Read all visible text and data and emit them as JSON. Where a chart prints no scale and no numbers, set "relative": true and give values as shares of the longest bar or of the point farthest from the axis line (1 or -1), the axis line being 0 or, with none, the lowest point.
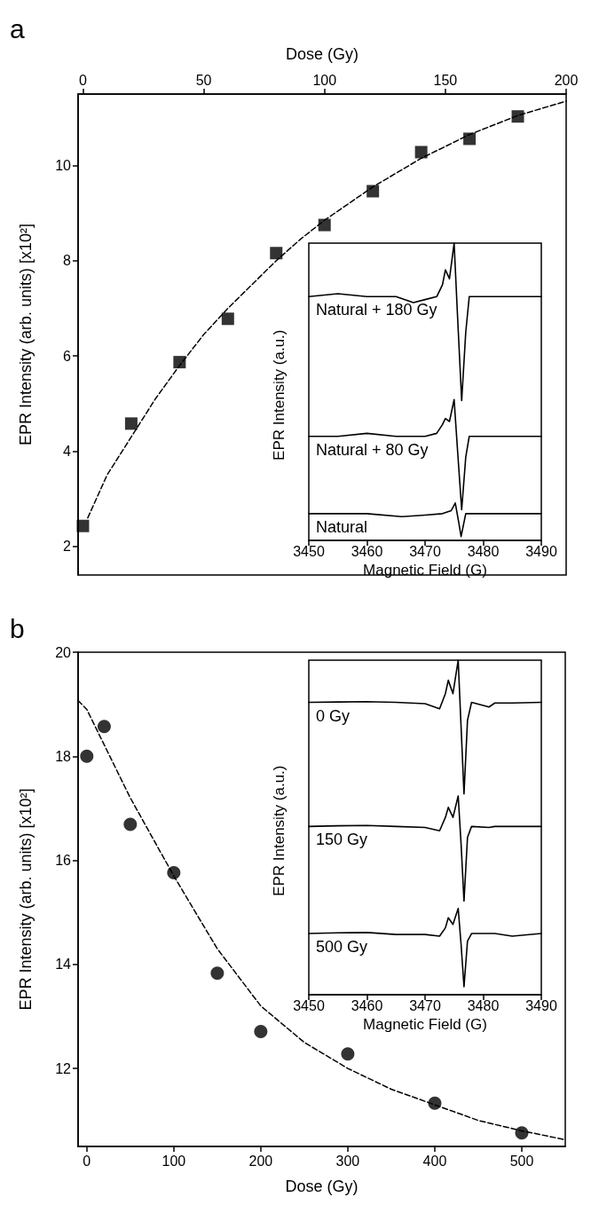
{
  "chart_data": [
    {
      "type": "scatter",
      "title": "a",
      "xlabel": "Dose (Gy)",
      "ylabel": "EPR Intensity (arb. units) [x10²]",
      "xlim": [
        -2,
        200
      ],
      "xticks": [
        0,
        50,
        100,
        150,
        200
      ],
      "ylim": [
        1.4,
        11.5
      ],
      "yticks": [
        2,
        4,
        6,
        8,
        10
      ],
      "series": [
        {
          "color": "#000000",
          "marker": "square",
          "x": [
            0,
            20,
            40,
            60,
            80,
            100,
            120,
            140,
            160,
            180
          ],
          "values": [
            2.43,
            4.58,
            5.87,
            6.78,
            8.16,
            8.75,
            9.46,
            10.28,
            10.56,
            11.03
          ]
        },
        {
          "type": "line",
          "color": "#000000",
          "marker": "none",
          "line_style": "dashed",
          "x": [
            2,
            10,
            20,
            30,
            40,
            50,
            60,
            70,
            80,
            90,
            100,
            120,
            140,
            160,
            180,
            200
          ],
          "values": [
            2.6,
            3.5,
            4.3,
            5.1,
            5.8,
            6.45,
            7.0,
            7.5,
            8.0,
            8.45,
            8.85,
            9.55,
            10.15,
            10.65,
            11.05,
            11.35
          ]
        }
      ]
    },
    {
      "type": "line",
      "relative": true,
      "xlabel": "Magnetic Field (G)",
      "ylabel": "EPR Intensity (a.u.)",
      "xlim": [
        3450,
        3490
      ],
      "xticks": [
        3450,
        3460,
        3470,
        3480,
        3490
      ],
      "series": [
        {
          "name": "Natural + 180 Gy",
          "color": "#000000",
          "x": [
            3450,
            3455,
            3460,
            3465,
            3468,
            3470,
            3472,
            3473,
            3473.5,
            3474.2,
            3475,
            3475.6,
            3476.3,
            3477,
            3477.6,
            3480,
            3485,
            3490
          ],
          "values": [
            0.82,
            0.83,
            0.82,
            0.82,
            0.8,
            0.81,
            0.82,
            0.86,
            0.91,
            0.88,
            1.0,
            0.75,
            0.47,
            0.7,
            0.82,
            0.82,
            0.82,
            0.82
          ]
        },
        {
          "name": "Natural + 80 Gy",
          "color": "#000000",
          "x": [
            3450,
            3455,
            3460,
            3465,
            3468,
            3470,
            3472,
            3473,
            3473.5,
            3474.2,
            3475,
            3475.6,
            3476.3,
            3477,
            3477.6,
            3480,
            3485,
            3490
          ],
          "values": [
            0.35,
            0.35,
            0.36,
            0.35,
            0.35,
            0.35,
            0.36,
            0.39,
            0.41,
            0.4,
            0.474,
            0.3,
            0.103,
            0.28,
            0.35,
            0.35,
            0.35,
            0.35
          ]
        },
        {
          "name": "Natural",
          "color": "#000000",
          "x": [
            3450,
            3455,
            3460,
            3466,
            3470,
            3473,
            3474.5,
            3475.2,
            3475.8,
            3476.2,
            3477,
            3480,
            3485,
            3490
          ],
          "values": [
            0.09,
            0.09,
            0.09,
            0.08,
            0.085,
            0.09,
            0.1,
            0.126,
            0.06,
            0.013,
            0.09,
            0.09,
            0.09,
            0.09
          ]
        }
      ]
    },
    {
      "type": "scatter",
      "title": "b",
      "xlabel": "Dose (Gy)",
      "ylabel": "EPR Intensity (arb. units) [x10²]",
      "xlim": [
        -10,
        550
      ],
      "xticks": [
        0,
        100,
        200,
        300,
        400,
        500
      ],
      "ylim": [
        10.5,
        20
      ],
      "yticks": [
        12,
        14,
        16,
        18,
        20
      ],
      "series": [
        {
          "color": "#000000",
          "marker": "circle",
          "x": [
            0,
            20,
            50,
            100,
            150,
            200,
            300,
            400,
            500
          ],
          "values": [
            18.0,
            18.57,
            16.69,
            15.76,
            13.83,
            12.71,
            12.28,
            11.33,
            10.76
          ]
        },
        {
          "type": "line",
          "color": "#000000",
          "marker": "none",
          "line_style": "dashed",
          "x": [
            -10,
            0,
            50,
            100,
            150,
            200,
            250,
            300,
            350,
            400,
            450,
            500,
            550
          ],
          "values": [
            19.07,
            18.9,
            17.2,
            15.7,
            14.3,
            13.2,
            12.5,
            12.0,
            11.6,
            11.3,
            11.0,
            10.8,
            10.63
          ]
        }
      ]
    },
    {
      "type": "line",
      "relative": true,
      "xlabel": "Magnetic Field (G)",
      "ylabel": "EPR Intensity (a.u.)",
      "xlim": [
        3450,
        3490
      ],
      "xticks": [
        3450,
        3460,
        3470,
        3480,
        3490
      ],
      "series": [
        {
          "name": "0 Gy",
          "color": "#000000",
          "x": [
            3450,
            3455,
            3460,
            3465,
            3470,
            3472.5,
            3473.5,
            3474,
            3474.8,
            3475.7,
            3476.2,
            3476.7,
            3477.3,
            3478,
            3481,
            3482,
            3485,
            3490
          ],
          "values": [
            0.874,
            0.875,
            0.876,
            0.874,
            0.87,
            0.855,
            0.9,
            0.94,
            0.9,
            1.0,
            0.8,
            0.6,
            0.82,
            0.874,
            0.86,
            0.872,
            0.872,
            0.874
          ]
        },
        {
          "name": "150 Gy",
          "color": "#000000",
          "x": [
            3450,
            3455,
            3460,
            3465,
            3470,
            3472.5,
            3473.5,
            3474,
            3474.8,
            3475.7,
            3476.2,
            3476.7,
            3477.3,
            3478,
            3481,
            3482,
            3485,
            3490
          ],
          "values": [
            0.503,
            0.505,
            0.506,
            0.503,
            0.5,
            0.49,
            0.53,
            0.56,
            0.53,
            0.594,
            0.45,
            0.28,
            0.47,
            0.503,
            0.5,
            0.503,
            0.503,
            0.503
          ]
        },
        {
          "name": "500 Gy",
          "color": "#000000",
          "x": [
            3450,
            3455,
            3460,
            3465,
            3470,
            3472.5,
            3473.5,
            3474,
            3474.8,
            3475.7,
            3476.2,
            3476.7,
            3477.3,
            3478,
            3481,
            3482,
            3485,
            3490
          ],
          "values": [
            0.183,
            0.185,
            0.186,
            0.18,
            0.18,
            0.175,
            0.2,
            0.23,
            0.21,
            0.258,
            0.15,
            0.024,
            0.16,
            0.183,
            0.183,
            0.183,
            0.175,
            0.183
          ]
        }
      ]
    }
  ]
}
